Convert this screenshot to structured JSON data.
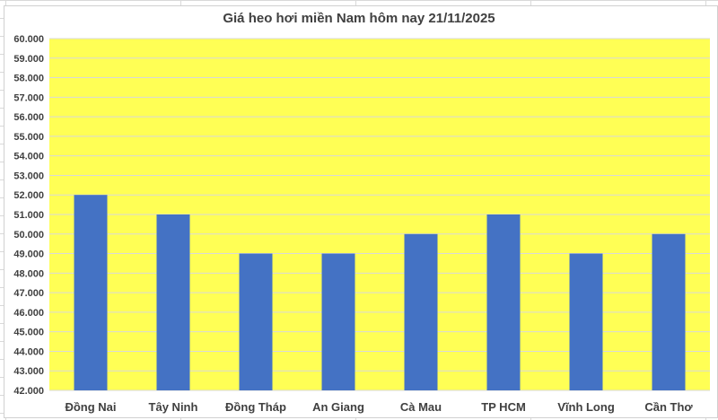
{
  "chart_data": {
    "type": "bar",
    "title": "Giá heo hơi miền Nam hôm nay 21/11/2025",
    "categories": [
      "Đồng Nai",
      "Tây Ninh",
      "Đồng Tháp",
      "An Giang",
      "Cà Mau",
      "TP HCM",
      "Vĩnh Long",
      "Cần Thơ"
    ],
    "values": [
      52000,
      51000,
      49000,
      49000,
      50000,
      51000,
      49000,
      50000
    ],
    "ylim": [
      42000,
      60000
    ],
    "ytick_step": 1000,
    "ytick_labels": [
      "42.000",
      "43.000",
      "44.000",
      "45.000",
      "46.000",
      "47.000",
      "48.000",
      "49.000",
      "50.000",
      "51.000",
      "52.000",
      "53.000",
      "54.000",
      "55.000",
      "56.000",
      "57.000",
      "58.000",
      "59.000",
      "60.000"
    ],
    "grid": true,
    "legend": "none",
    "colors": {
      "bar": "#4472c4",
      "plot_background": "#ffff55",
      "grid": "#d9d9d9"
    }
  }
}
